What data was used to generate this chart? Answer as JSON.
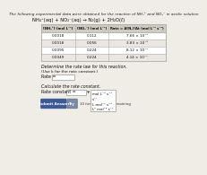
{
  "title_line1": "The following experimental data were obtained for the reaction of NH₄⁺ and NO₂⁻ in acidic solution",
  "reaction": "NH₄⁺(aq) + NO₂⁻(aq) → N₂(g) + 2H₂O(ℓ)",
  "col_headers": [
    "[NH₄⁺] (mol L⁻¹)",
    "[NO₂⁻] (mol L⁻¹)",
    "Rate = Δ[N₂]/Δt (mol L⁻¹ s⁻¹)"
  ],
  "table_data": [
    [
      "0.0018",
      "0.112",
      "7.66 × 10⁻⁸"
    ],
    [
      "0.0018",
      "0.056",
      "3.83 × 10⁻⁸"
    ],
    [
      "0.0095",
      "0.224",
      "8.12 × 10⁻⁷"
    ],
    [
      "0.0049",
      "0.224",
      "4.14 × 10⁻⁷"
    ]
  ],
  "question1": "Determine the rate law for this reaction.",
  "question1b": "(Use k for the rate constant.)",
  "label_rate": "Rate =",
  "question2": "Calculate the rate constant.",
  "label_rc": "Rate constant =",
  "units": [
    "mol L⁻¹ s⁻¹",
    "s⁻¹",
    "L mol⁻¹ s⁻¹",
    "L² mol⁻² s⁻¹"
  ],
  "btn_text": "Submit Answer",
  "try_text": "Try",
  "attempts_text": "10 item attempts remaining",
  "bg_color": "#f0ece6",
  "table_header_bg": "#d0cac0",
  "table_row_bg1": "#ffffff",
  "table_row_bg2": "#ebe7e0",
  "table_border_color": "#aaaaaa",
  "btn_color": "#3a5a9a",
  "try_color": "#7a8aaa"
}
